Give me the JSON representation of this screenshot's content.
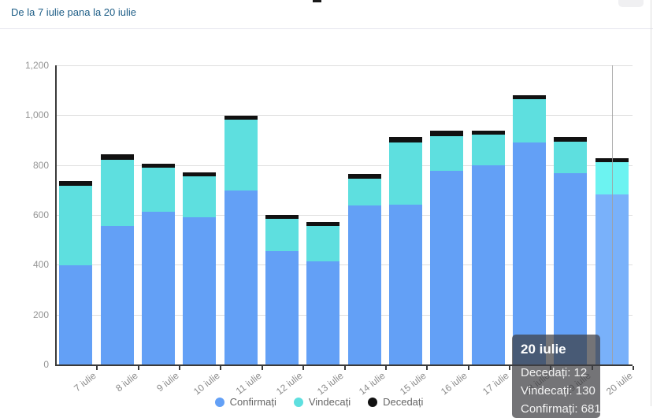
{
  "header": {
    "subtitle": "De la 7 iulie pana la 20 iulie"
  },
  "chart_data": {
    "type": "bar",
    "stacked": true,
    "title": "",
    "xlabel": "",
    "ylabel": "",
    "categories": [
      "7 iulie",
      "8 iulie",
      "9 iulie",
      "10 iulie",
      "11 iulie",
      "12 iulie",
      "13 iulie",
      "14 iulie",
      "15 iulie",
      "16 iulie",
      "17 iulie",
      "18 iulie",
      "19 iulie",
      "20 iulie"
    ],
    "series": [
      {
        "name": "Confirmați",
        "color": "#63a0f6",
        "hover_color": "#79b1fa",
        "values": [
          397,
          555,
          614,
          591,
          698,
          456,
          413,
          637,
          641,
          777,
          799,
          889,
          767,
          681
        ]
      },
      {
        "name": "Vindecați",
        "color": "#5edfdf",
        "hover_color": "#6cf3f1",
        "values": [
          320,
          265,
          174,
          164,
          285,
          128,
          144,
          109,
          249,
          140,
          124,
          175,
          127,
          130
        ]
      },
      {
        "name": "Decedați",
        "color": "#111111",
        "hover_color": "#111111",
        "values": [
          18,
          22,
          17,
          17,
          16,
          11,
          14,
          19,
          23,
          21,
          16,
          15,
          18,
          12
        ]
      }
    ],
    "ylim": [
      0,
      1200
    ],
    "ytick_step": 200,
    "yticks": [
      "0",
      "200",
      "400",
      "600",
      "800",
      "1,000",
      "1,200"
    ],
    "grid": true,
    "legend_position": "bottom",
    "hovered_category": "20 iulie"
  },
  "tooltip": {
    "title": "20 iulie",
    "lines": [
      "Decedați: 12",
      "Vindecați: 130",
      "Confirmați: 681"
    ]
  },
  "legend": {
    "items": [
      {
        "label": "Confirmați",
        "color": "#63a0f6"
      },
      {
        "label": "Vindecați",
        "color": "#5edfdf"
      },
      {
        "label": "Decedați",
        "color": "#111111"
      }
    ]
  },
  "colors": {
    "subtitle_text": "#1d5d86",
    "gridline": "#dedede",
    "axis_line": "#3a3a3a",
    "tick_label": "#949494",
    "tooltip_bg": "rgba(62,62,66,0.72)",
    "crosshair": "#a0a0a0"
  }
}
